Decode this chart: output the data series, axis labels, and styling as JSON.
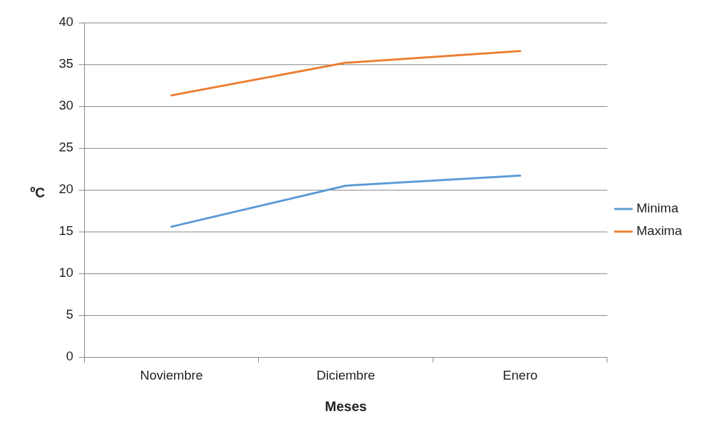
{
  "chart_data": {
    "type": "line",
    "xlabel": "Meses",
    "ylabel": "ºC",
    "categories": [
      "Noviembre",
      "Diciembre",
      "Enero"
    ],
    "series": [
      {
        "name": "Minima",
        "color": "#5b9bd5",
        "values": [
          15.6,
          20.5,
          21.7
        ]
      },
      {
        "name": "Maxima",
        "color": "#ed7d31",
        "values": [
          31.3,
          35.2,
          36.6
        ]
      }
    ],
    "ylim": [
      0,
      40
    ],
    "yticks": [
      0,
      5,
      10,
      15,
      20,
      25,
      30,
      35,
      40
    ],
    "grid": "y",
    "legend": "right",
    "marker": "none",
    "line_style": "solid"
  }
}
